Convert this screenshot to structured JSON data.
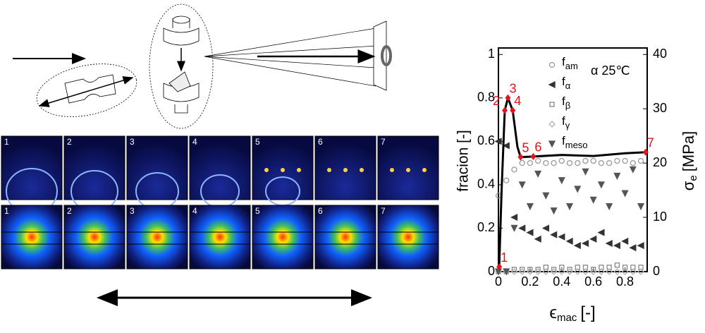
{
  "panels": {
    "top_row": [
      "1",
      "2",
      "3",
      "4",
      "5",
      "6",
      "7"
    ],
    "bottom_row": [
      "1",
      "2",
      "3",
      "4",
      "5",
      "6",
      "7"
    ]
  },
  "chart_data": {
    "type": "scatter",
    "annotation": "α 25℃",
    "xlabel": {
      "text": "ϵ",
      "sub": "mac",
      "unit": "[-]"
    },
    "ylabel": "fracion [-]",
    "y2label": {
      "text": "σ",
      "sub": "e",
      "unit": "[MPa]"
    },
    "xlim": [
      0,
      0.94
    ],
    "xticks": [
      0,
      0.2,
      0.4,
      0.6,
      0.8
    ],
    "ylim": [
      0,
      1.03
    ],
    "yticks": [
      0,
      0.2,
      0.4,
      0.6,
      0.8,
      1
    ],
    "y2lim": [
      0,
      41.2
    ],
    "y2ticks": [
      0,
      10,
      20,
      30,
      40
    ],
    "x": [
      0,
      0.05,
      0.1,
      0.15,
      0.2,
      0.25,
      0.3,
      0.35,
      0.4,
      0.45,
      0.5,
      0.55,
      0.6,
      0.65,
      0.7,
      0.75,
      0.8,
      0.85,
      0.9
    ],
    "series": [
      {
        "name": "f",
        "subscript": "am",
        "marker": "circle",
        "color": "#9a9a9a",
        "values": [
          0.35,
          0.42,
          0.47,
          0.5,
          0.5,
          0.51,
          0.5,
          0.5,
          0.51,
          0.5,
          0.5,
          0.51,
          0.51,
          0.5,
          0.5,
          0.51,
          0.51,
          0.5,
          0.51
        ]
      },
      {
        "name": "f",
        "subscript": "α",
        "marker": "triangle-left",
        "color": "#333333",
        "values": [
          0.6,
          0.58,
          0.25,
          0.2,
          0.18,
          0.15,
          0.2,
          0.17,
          0.16,
          0.14,
          0.12,
          0.13,
          0.15,
          0.18,
          0.13,
          0.12,
          0.14,
          0.11,
          0.12
        ]
      },
      {
        "name": "f",
        "subscript": "β",
        "marker": "square",
        "color": "#888888",
        "values": [
          0,
          0,
          0.01,
          0.01,
          0.01,
          0.01,
          0.02,
          0.01,
          0.02,
          0.01,
          0.02,
          0.02,
          0.01,
          0.02,
          0.02,
          0.03,
          0.02,
          0.02,
          0.02
        ]
      },
      {
        "name": "f",
        "subscript": "γ",
        "marker": "diamond",
        "color": "#b0b0b0",
        "values": [
          0,
          0,
          0,
          0,
          0,
          0,
          0,
          0,
          0,
          0,
          0,
          0,
          0,
          0,
          0,
          0,
          0,
          0,
          0
        ]
      },
      {
        "name": "f",
        "subscript": "meso",
        "marker": "triangle-down",
        "color": "#555555",
        "values": [
          0,
          0,
          0.2,
          0.4,
          0.3,
          0.45,
          0.35,
          0.28,
          0.42,
          0.3,
          0.38,
          0.46,
          0.33,
          0.4,
          0.3,
          0.44,
          0.36,
          0.47,
          0.3
        ]
      }
    ],
    "stress": {
      "axis": "y2",
      "color": "#000000",
      "marker_color": "#e3141b",
      "x": [
        0.005,
        0.02,
        0.04,
        0.06,
        0.09,
        0.12,
        0.14,
        0.22,
        0.4,
        0.6,
        0.8,
        0.93
      ],
      "values": [
        0.9,
        15,
        29.7,
        32,
        29.7,
        23,
        21.1,
        21.2,
        21.5,
        21.3,
        21.8,
        22
      ],
      "point_labels": [
        "1",
        null,
        "2",
        "3",
        "4",
        null,
        "5",
        "6",
        null,
        null,
        null,
        "7"
      ]
    }
  }
}
